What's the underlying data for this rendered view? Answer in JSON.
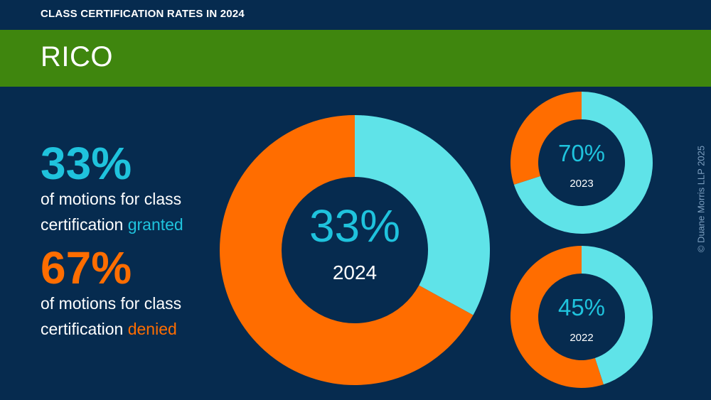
{
  "header": {
    "kicker": "CLASS CERTIFICATION RATES IN 2024",
    "title": "RICO"
  },
  "stats": {
    "granted": {
      "value": "33%",
      "line1": "of motions for class",
      "line2_prefix": "certification",
      "line2_highlight": "granted"
    },
    "denied": {
      "value": "67%",
      "line1": "of motions for class",
      "line2_prefix": "certification",
      "line2_highlight": "denied"
    }
  },
  "copyright": "© Duane Morris LLP 2025",
  "colors": {
    "background": "#062b4f",
    "banner": "#3f860e",
    "granted": "#5fe3e8",
    "denied": "#ff6d00",
    "granted_text": "#1fc3dd"
  },
  "chart_data": [
    {
      "type": "pie",
      "year": "2024",
      "center_label": "33%",
      "categories": [
        "granted",
        "denied"
      ],
      "values": [
        33,
        67
      ]
    },
    {
      "type": "pie",
      "year": "2023",
      "center_label": "70%",
      "categories": [
        "granted",
        "denied"
      ],
      "values": [
        70,
        30
      ]
    },
    {
      "type": "pie",
      "year": "2022",
      "center_label": "45%",
      "categories": [
        "granted",
        "denied"
      ],
      "values": [
        45,
        55
      ]
    }
  ]
}
